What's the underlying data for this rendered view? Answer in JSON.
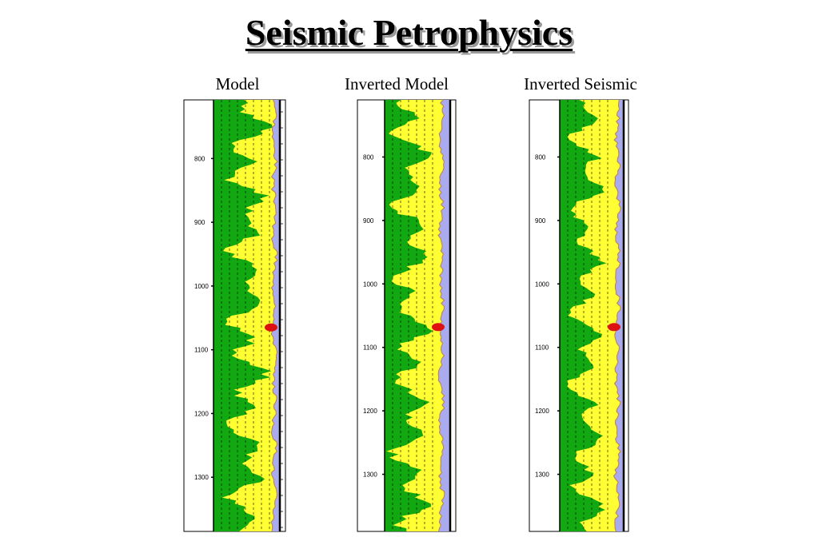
{
  "title": "Seismic Petrophysics",
  "colors": {
    "sand": "#11a811",
    "shale": "#ffff33",
    "fluid": "#aaaaee",
    "gas": "#dd1111",
    "curve": "#c0803a"
  },
  "chart_data": [
    {
      "type": "area",
      "title": "Model",
      "depth_ticks": [
        800,
        900,
        1000,
        1100,
        1200,
        1300
      ],
      "ylim": [
        708,
        1385
      ],
      "gas_zone_depth": 1065
    },
    {
      "type": "area",
      "title": "Inverted Model",
      "depth_ticks": [
        800,
        900,
        1000,
        1100,
        1200,
        1300
      ],
      "ylim": [
        710,
        1390
      ],
      "gas_zone_depth": 1068
    },
    {
      "type": "area",
      "title": "Inverted Seismic",
      "depth_ticks": [
        800,
        900,
        1000,
        1100,
        1200,
        1300
      ],
      "ylim": [
        710,
        1390
      ],
      "gas_zone_depth": 1068
    }
  ]
}
